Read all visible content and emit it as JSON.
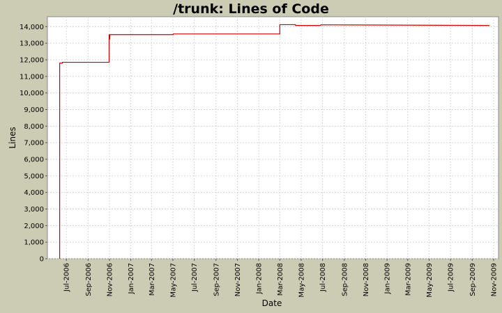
{
  "chart_data": {
    "type": "line",
    "title": "/trunk: Lines of Code",
    "xlabel": "Date",
    "ylabel": "Lines",
    "ylim": [
      0,
      14600
    ],
    "yticks": [
      0,
      1000,
      2000,
      3000,
      4000,
      5000,
      6000,
      7000,
      8000,
      9000,
      10000,
      11000,
      12000,
      13000,
      14000
    ],
    "ytick_labels": [
      "0",
      "1,000",
      "2,000",
      "3,000",
      "4,000",
      "5,000",
      "6,000",
      "7,000",
      "8,000",
      "9,000",
      "10,000",
      "11,000",
      "12,000",
      "13,000",
      "14,000"
    ],
    "xlim": [
      "2006-05-08",
      "2009-11-15"
    ],
    "xticks": [
      "2006-07-01",
      "2006-09-01",
      "2006-11-01",
      "2007-01-01",
      "2007-03-01",
      "2007-05-01",
      "2007-07-01",
      "2007-09-01",
      "2007-11-01",
      "2008-01-01",
      "2008-03-01",
      "2008-05-01",
      "2008-07-01",
      "2008-09-01",
      "2008-11-01",
      "2009-01-01",
      "2009-03-01",
      "2009-05-01",
      "2009-07-01",
      "2009-09-01",
      "2009-11-01"
    ],
    "xtick_labels": [
      "Jul-2006",
      "Sep-2006",
      "Nov-2006",
      "Jan-2007",
      "Mar-2007",
      "May-2007",
      "Jul-2007",
      "Sep-2007",
      "Nov-2007",
      "Jan-2008",
      "Mar-2008",
      "May-2008",
      "Jul-2008",
      "Sep-2008",
      "Nov-2008",
      "Jan-2009",
      "Mar-2009",
      "May-2009",
      "Jul-2009",
      "Sep-2009",
      "Nov-2009"
    ],
    "grid": true,
    "series": [
      {
        "color": "#cc0000",
        "x": [
          "2006-06-12",
          "2006-06-12",
          "2006-06-12",
          "2006-06-20",
          "2006-06-20",
          "2006-10-31",
          "2006-10-31",
          "2006-11-01",
          "2006-11-01",
          "2006-11-02",
          "2006-11-02",
          "2007-05-02",
          "2007-05-02",
          "2008-03-01",
          "2008-03-01",
          "2008-04-15",
          "2008-04-15",
          "2008-06-25",
          "2008-06-26",
          "2009-10-20"
        ],
        "y": [
          0,
          11800,
          11800,
          11800,
          11850,
          11850,
          13500,
          13500,
          13250,
          13250,
          13520,
          13520,
          13560,
          13560,
          14120,
          14120,
          14070,
          14070,
          14110,
          14070
        ]
      }
    ]
  }
}
